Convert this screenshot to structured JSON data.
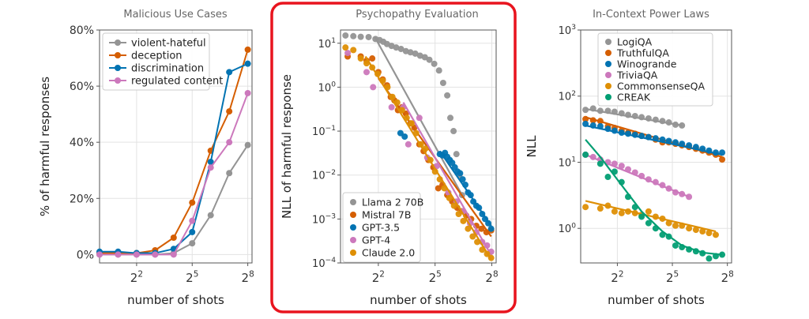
{
  "chart_data": [
    {
      "type": "line",
      "title": "Malicious Use Cases",
      "xlabel": "number of shots",
      "ylabel": "% of harmful responses",
      "x_scale": "log2",
      "xlim": [
        1,
        300
      ],
      "ylim": [
        -3,
        80
      ],
      "x_ticks": [
        {
          "value": 4,
          "base": "2",
          "exp": "2"
        },
        {
          "value": 32,
          "base": "2",
          "exp": "5"
        },
        {
          "value": 256,
          "base": "2",
          "exp": "8"
        }
      ],
      "y_ticks": [
        {
          "value": 0,
          "label": "0%"
        },
        {
          "value": 20,
          "label": "20%"
        },
        {
          "value": 40,
          "label": "40%"
        },
        {
          "value": 60,
          "label": "60%"
        },
        {
          "value": 80,
          "label": "80%"
        }
      ],
      "grid": true,
      "legend_position": "upper-left",
      "series": [
        {
          "name": "violent-hateful",
          "color": "#949494",
          "x": [
            1,
            2,
            4,
            8,
            16,
            32,
            64,
            128,
            256
          ],
          "y": [
            0,
            0,
            0,
            0,
            0.5,
            4,
            14,
            29,
            39
          ]
        },
        {
          "name": "deception",
          "color": "#d55e00",
          "x": [
            1,
            2,
            4,
            8,
            16,
            32,
            64,
            128,
            256
          ],
          "y": [
            0.5,
            0.5,
            0.5,
            1.5,
            6,
            18.5,
            37,
            51,
            73
          ]
        },
        {
          "name": "discrimination",
          "color": "#0173b2",
          "x": [
            1,
            2,
            4,
            8,
            16,
            32,
            64,
            128,
            256
          ],
          "y": [
            1,
            1,
            0.5,
            0.5,
            2,
            8,
            33,
            65,
            68
          ]
        },
        {
          "name": "regulated content",
          "color": "#cc78bc",
          "x": [
            1,
            2,
            4,
            8,
            16,
            32,
            64,
            128,
            256
          ],
          "y": [
            0,
            0,
            0,
            0,
            0,
            12,
            31,
            40,
            57.5
          ]
        }
      ]
    },
    {
      "type": "scatter",
      "title": "Psychopathy Evaluation",
      "xlabel": "number of shots",
      "ylabel": "NLL of harmful response",
      "x_scale": "log2",
      "y_scale": "log10",
      "xlim": [
        1,
        300
      ],
      "ylim": [
        0.0001,
        20
      ],
      "highlighted": true,
      "x_ticks": [
        {
          "value": 4,
          "base": "2",
          "exp": "2"
        },
        {
          "value": 32,
          "base": "2",
          "exp": "5"
        },
        {
          "value": 256,
          "base": "2",
          "exp": "8"
        }
      ],
      "y_ticks": [
        {
          "value": 10,
          "base": "10",
          "exp": "1"
        },
        {
          "value": 1,
          "base": "10",
          "exp": "0"
        },
        {
          "value": 0.1,
          "base": "10",
          "exp": "−1"
        },
        {
          "value": 0.01,
          "base": "10",
          "exp": "−2"
        },
        {
          "value": 0.001,
          "base": "10",
          "exp": "−3"
        },
        {
          "value": 0.0001,
          "base": "10",
          "exp": "−4"
        }
      ],
      "grid": true,
      "legend_position": "lower-left",
      "series": [
        {
          "name": "Llama 2 70B",
          "color": "#949494",
          "x": [
            1.2,
            1.6,
            2.1,
            2.8,
            3.6,
            4.2,
            4.8,
            5.5,
            6.5,
            7.7,
            9.2,
            11,
            13,
            15.5,
            18.5,
            22,
            26,
            31,
            37,
            43,
            50,
            56,
            63,
            70,
            78,
            86
          ],
          "y": [
            15,
            14.5,
            14,
            13.8,
            12.5,
            11.8,
            10.8,
            9.6,
            8.7,
            8.0,
            7.4,
            6.6,
            6.2,
            5.8,
            5.2,
            4.8,
            4.2,
            3.4,
            2.4,
            1.25,
            0.65,
            0.2,
            0.1,
            0.03,
            0.01,
            0.0035
          ],
          "fit_x": [
            3.5,
            86
          ],
          "fit_y": [
            14,
            0.0035
          ]
        },
        {
          "name": "Mistral 7B",
          "color": "#d55e00",
          "x": [
            1.3,
            2.1,
            2.6,
            3.2,
            4,
            4.7,
            5.5,
            6.3,
            7.2,
            8.2,
            9.5,
            11,
            13,
            15,
            18,
            21,
            25,
            30,
            36,
            42,
            50,
            60,
            72,
            85,
            100,
            120,
            145,
            175,
            210,
            250
          ],
          "y": [
            5,
            5,
            4,
            4.5,
            2.2,
            1.5,
            1.1,
            0.6,
            0.5,
            0.3,
            0.35,
            0.25,
            0.15,
            0.12,
            0.05,
            0.035,
            0.022,
            0.015,
            0.005,
            0.006,
            0.0035,
            0.0025,
            0.0018,
            0.0015,
            0.0012,
            0.001,
            0.0007,
            0.0006,
            0.0005,
            0.00055
          ],
          "fit_x": [
            4,
            250
          ],
          "fit_y": [
            1.6,
            0.0004
          ]
        },
        {
          "name": "GPT-3.5",
          "color": "#0173b2",
          "x": [
            9,
            10.5,
            38,
            42,
            46,
            50,
            55,
            60,
            66,
            73,
            80,
            88,
            97,
            107,
            118,
            130,
            145,
            160,
            180,
            200,
            225,
            250
          ],
          "y": [
            0.09,
            0.075,
            0.03,
            0.028,
            0.032,
            0.026,
            0.022,
            0.019,
            0.015,
            0.012,
            0.011,
            0.008,
            0.006,
            0.004,
            0.0035,
            0.0025,
            0.002,
            0.0018,
            0.0013,
            0.001,
            0.0008,
            0.0006
          ],
          "fit_x": [
            38,
            250
          ],
          "fit_y": [
            0.035,
            0.0007
          ]
        },
        {
          "name": "GPT-4",
          "color": "#cc78bc",
          "x": [
            1.3,
            2.6,
            3.3,
            6.5,
            10,
            12,
            18,
            24,
            34,
            52,
            70,
            90,
            115,
            145,
            180,
            215,
            250
          ],
          "y": [
            6,
            2.2,
            1.0,
            0.35,
            0.35,
            0.05,
            0.2,
            0.025,
            0.016,
            0.004,
            0.0025,
            0.0015,
            0.0008,
            0.0005,
            0.0003,
            0.00025,
            0.00018
          ],
          "fit_x": [
            10,
            250
          ],
          "fit_y": [
            0.45,
            0.00015
          ]
        },
        {
          "name": "Claude 2.0",
          "color": "#de8f05",
          "x": [
            1.2,
            1.6,
            2.1,
            2.6,
            3.2,
            3.9,
            4.7,
            5.6,
            6.7,
            8,
            9.5,
            11.3,
            13.5,
            16,
            19,
            22.5,
            27,
            32,
            38,
            45,
            54,
            64,
            76,
            90,
            107,
            127,
            150,
            180,
            215,
            250
          ],
          "y": [
            8,
            7,
            4.5,
            3.5,
            2.8,
            2.0,
            1.4,
            1.0,
            0.6,
            0.45,
            0.3,
            0.2,
            0.15,
            0.09,
            0.05,
            0.04,
            0.022,
            0.012,
            0.008,
            0.005,
            0.003,
            0.002,
            0.0013,
            0.0009,
            0.0006,
            0.0004,
            0.0003,
            0.0002,
            0.00016,
            0.00013
          ],
          "fit_x": [
            2.5,
            250
          ],
          "fit_y": [
            5,
            0.00012
          ]
        }
      ]
    },
    {
      "type": "scatter",
      "title": "In-Context Power Laws",
      "xlabel": "number of shots",
      "ylabel": "NLL",
      "x_scale": "log2",
      "y_scale": "log10",
      "xlim": [
        1,
        300
      ],
      "ylim": [
        0.3,
        1000
      ],
      "x_ticks": [
        {
          "value": 4,
          "base": "2",
          "exp": "2"
        },
        {
          "value": 32,
          "base": "2",
          "exp": "5"
        },
        {
          "value": 256,
          "base": "2",
          "exp": "8"
        }
      ],
      "y_ticks": [
        {
          "value": 1000,
          "base": "10",
          "exp": "3"
        },
        {
          "value": 100,
          "base": "10",
          "exp": "2"
        },
        {
          "value": 10,
          "base": "10",
          "exp": "1"
        },
        {
          "value": 1,
          "base": "10",
          "exp": "0"
        }
      ],
      "grid": true,
      "legend_position": "upper-right",
      "series": [
        {
          "name": "LogiQA",
          "color": "#949494",
          "x": [
            1.2,
            1.6,
            2.1,
            2.8,
            3.6,
            4.7,
            6,
            7.8,
            10,
            13,
            17,
            22,
            28,
            36,
            46
          ],
          "y": [
            62,
            65,
            60,
            60,
            58,
            55,
            52,
            50,
            48,
            46,
            44,
            42,
            40,
            37,
            36
          ],
          "fit_x": [
            1.2,
            46
          ],
          "fit_y": [
            64,
            36
          ]
        },
        {
          "name": "TruthfulQA",
          "color": "#d55e00",
          "x": [
            1.2,
            1.6,
            2.1,
            2.8,
            3.6,
            4.7,
            6,
            7.8,
            10,
            13,
            17,
            22,
            28,
            36,
            46,
            60,
            78,
            100,
            128,
            165,
            210
          ],
          "y": [
            45,
            43,
            42,
            35,
            33,
            30,
            28,
            27,
            25,
            24,
            22,
            20,
            20,
            19,
            18,
            17,
            16,
            15,
            14,
            13,
            11
          ],
          "fit_x": [
            1.2,
            210
          ],
          "fit_y": [
            48,
            12
          ]
        },
        {
          "name": "Winogrande",
          "color": "#0173b2",
          "x": [
            1.2,
            1.6,
            2.1,
            2.8,
            3.6,
            4.7,
            6,
            7.8,
            10,
            13,
            17,
            22,
            28,
            36,
            46,
            60,
            78,
            100,
            128,
            165,
            210
          ],
          "y": [
            38,
            36,
            35,
            32,
            30,
            28,
            27,
            26,
            25,
            24,
            23,
            22,
            21,
            20,
            19,
            18,
            17,
            16,
            15,
            14,
            14
          ],
          "fit_x": [
            1.2,
            210
          ],
          "fit_y": [
            36,
            13
          ]
        },
        {
          "name": "TriviaQA",
          "color": "#cc78bc",
          "x": [
            1.2,
            1.6,
            2.1,
            2.8,
            3.6,
            4.7,
            6,
            7.8,
            10,
            13,
            17,
            22,
            28,
            36,
            46,
            60
          ],
          "y": [
            13,
            12,
            11,
            10,
            9.5,
            8.8,
            7.8,
            7.0,
            6.2,
            5.5,
            5.0,
            4.5,
            4.0,
            3.5,
            3.3,
            3.0
          ],
          "fit_x": [
            1.2,
            60
          ],
          "fit_y": [
            13,
            3
          ]
        },
        {
          "name": "CommonsenseQA",
          "color": "#de8f05",
          "x": [
            1.2,
            2.1,
            2.8,
            3.6,
            4.7,
            6,
            7.8,
            10,
            13,
            17,
            22,
            28,
            36,
            46,
            60,
            78,
            100,
            128,
            165
          ],
          "y": [
            2.1,
            2.0,
            2.2,
            1.8,
            1.7,
            1.8,
            1.7,
            1.6,
            1.8,
            1.5,
            1.4,
            1.2,
            1.1,
            1.1,
            1.0,
            0.95,
            0.9,
            0.85,
            0.8
          ],
          "fit_x": [
            1.2,
            165
          ],
          "fit_y": [
            2.6,
            0.9
          ]
        },
        {
          "name": "CREAK",
          "color": "#029e73",
          "x": [
            1.2,
            2.1,
            2.8,
            3.6,
            4.7,
            6,
            7.8,
            10,
            13,
            17,
            22,
            28,
            36,
            46,
            60,
            78,
            100,
            128,
            165,
            210
          ],
          "y": [
            13,
            9.5,
            6.0,
            7.2,
            5.0,
            3.0,
            2.1,
            1.5,
            1.2,
            1.0,
            0.8,
            0.75,
            0.55,
            0.52,
            0.48,
            0.45,
            0.42,
            0.35,
            0.38,
            0.4
          ],
          "fit_x": [
            1.2,
            2.1,
            4.7,
            10,
            22,
            46,
            100,
            210
          ],
          "fit_y": [
            22,
            12,
            4.5,
            1.8,
            0.9,
            0.55,
            0.43,
            0.4
          ]
        }
      ]
    }
  ]
}
